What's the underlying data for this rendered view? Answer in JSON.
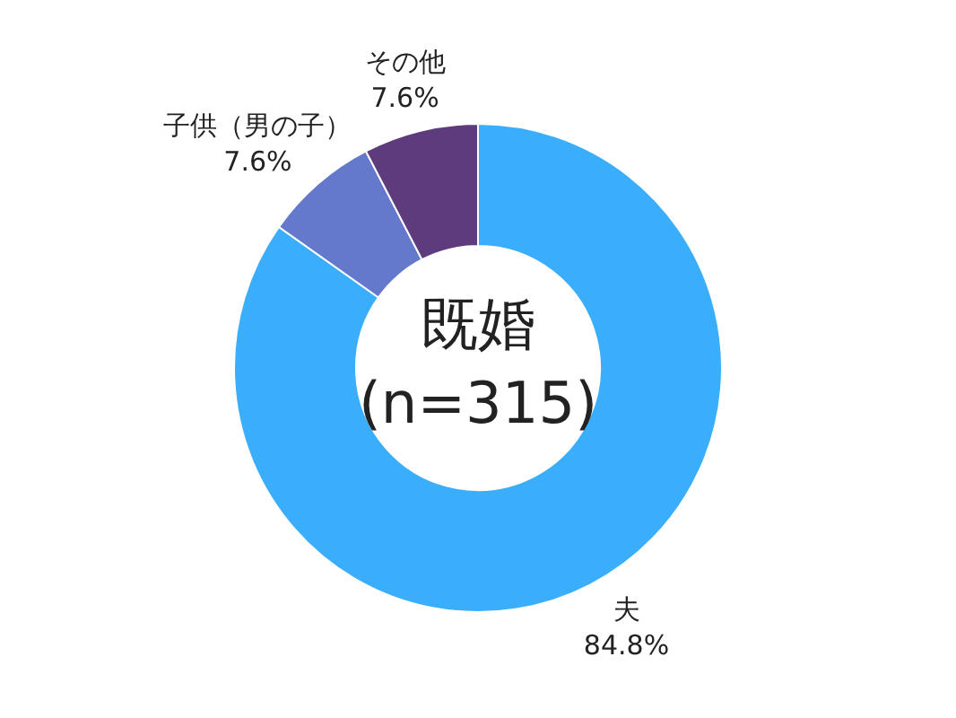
{
  "chart_data": {
    "type": "donut",
    "title": "既婚",
    "subtitle": "(n=315)",
    "categories": [
      "夫",
      "子供（男の子）",
      "その他"
    ],
    "values": [
      84.8,
      7.6,
      7.6
    ],
    "colors": [
      "#3aaefa",
      "#6478cc",
      "#5e3b7c"
    ],
    "value_labels": [
      "84.8%",
      "7.6%",
      "7.6%"
    ],
    "legend": false
  }
}
